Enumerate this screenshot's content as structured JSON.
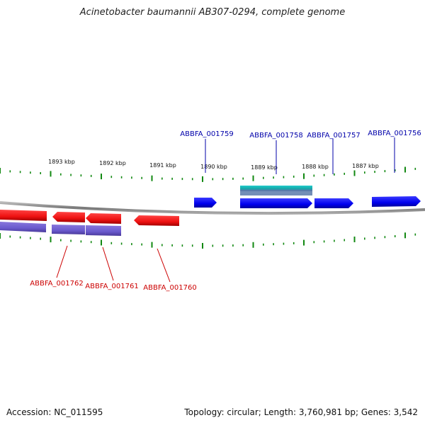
{
  "title": "Acinetobacter baumannii AB307-0294, complete genome",
  "footer": {
    "accession": "Accession: NC_011595",
    "summary": "Topology: circular; Length: 3,760,981 bp; Genes: 3,542"
  },
  "colors": {
    "plus_strand_gene": "#0000ee",
    "minus_strand_gene": "#ee1111",
    "plus_cds": "#14b8b8",
    "minus_cds": "#7766cc",
    "plus_label": "#0000aa",
    "minus_label": "#cc0000",
    "ticks": "#118811",
    "backbone": "#888888"
  },
  "ruler_labels": [
    "1893 kbp",
    "1892 kbp",
    "1891 kbp",
    "1890 kbp",
    "1889 kbp",
    "1888 kbp",
    "1887 kbp"
  ],
  "genes_plus": [
    {
      "name": "ABBFA_001759"
    },
    {
      "name": "ABBFA_001758"
    },
    {
      "name": "ABBFA_001757"
    },
    {
      "name": "ABBFA_001756"
    }
  ],
  "genes_minus": [
    {
      "name": "ABBFA_001762"
    },
    {
      "name": "ABBFA_001761"
    },
    {
      "name": "ABBFA_001760"
    }
  ]
}
